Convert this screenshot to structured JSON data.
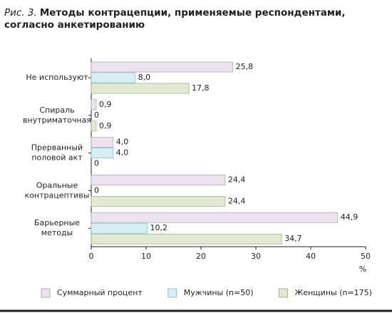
{
  "chart_data": {
    "type": "bar",
    "orientation": "horizontal",
    "figure_label": "Рис. 3.",
    "title": "Методы контрацепции, применяемые респондентами, согласно анкетированию",
    "categories": [
      "Не используют",
      "Спираль\nвнутриматочная",
      "Прерванный\nполовой акт",
      "Оральные\nконтрацептивы",
      "Барьерные\nметоды"
    ],
    "series": [
      {
        "name": "Суммарный процент",
        "color": "#ece3ee",
        "edge": "#b8a6c0",
        "values": [
          25.8,
          0.9,
          4.0,
          24.4,
          44.9
        ],
        "value_labels": [
          "25,8",
          "0,9",
          "4,0",
          "24,4",
          "44,9"
        ]
      },
      {
        "name": "Мужчины (n=50)",
        "color": "#d6eff3",
        "edge": "#88c6d0",
        "values": [
          8.0,
          0,
          4.0,
          0,
          10.2
        ],
        "value_labels": [
          "8,0",
          "0",
          "4,0",
          "0",
          "10,2"
        ]
      },
      {
        "name": "Женщины (n=175)",
        "color": "#e2e9d3",
        "edge": "#a5b585",
        "values": [
          17.8,
          0.9,
          0,
          24.4,
          34.7
        ],
        "value_labels": [
          "17,8",
          "0,9",
          "0",
          "24,4",
          "34,7"
        ]
      }
    ],
    "xlim": [
      0,
      50
    ],
    "xticks": [
      0,
      10,
      20,
      30,
      40,
      50
    ],
    "xlabel": "%"
  }
}
